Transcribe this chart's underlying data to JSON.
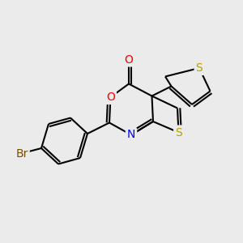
{
  "background_color": "#ebebeb",
  "bond_color": "#000000",
  "bond_width": 1.5,
  "atom_colors": {
    "O": "#ff0000",
    "N": "#0000ff",
    "S": "#b8a000",
    "Br": "#7a4a00",
    "C": "#000000"
  },
  "font_size_atom": 10
}
